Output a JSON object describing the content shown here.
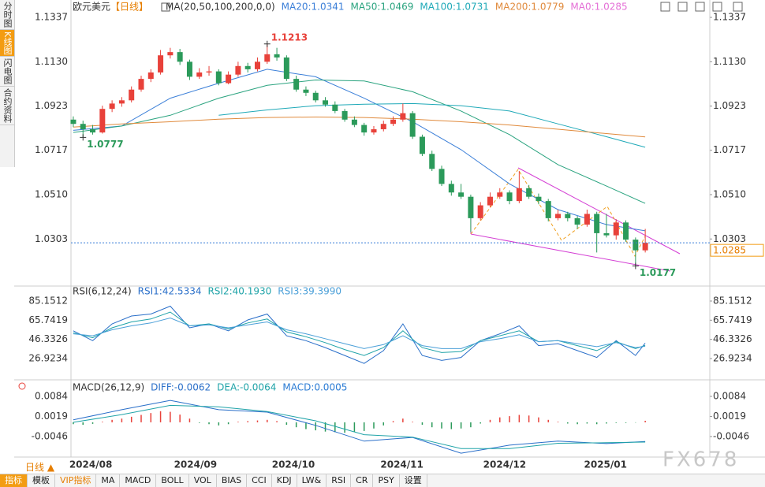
{
  "sidebar_tabs": [
    "分时图",
    "K线图",
    "闪电图",
    "合约资料"
  ],
  "period": "日线",
  "toolbar": [
    "指标",
    "模板",
    "VIP指标",
    "MA",
    "MACD",
    "BOLL",
    "VOL",
    "BIAS",
    "CCI",
    "KDJ",
    "LW&",
    "RSI",
    "CR",
    "PSY",
    "设置"
  ],
  "watermark": "FX678",
  "chart_data": [
    {
      "type": "candlestick",
      "title": "欧元美元",
      "period_label": "【日线】",
      "indicator": "MA(20,50,100,200,0,0)",
      "xlim": [
        -0.24,
        65.66
      ],
      "xticks": [
        {
          "value": 1.8,
          "label": "2024/08"
        },
        {
          "value": 12.6,
          "label": "2024/09"
        },
        {
          "value": 22.7,
          "label": "2024/10"
        },
        {
          "value": 33.9,
          "label": "2024/11"
        },
        {
          "value": 44.5,
          "label": "2024/12"
        },
        {
          "value": 54.9,
          "label": "2025/01"
        }
      ],
      "ylim": [
        1.0087,
        1.1374
      ],
      "yticks": [
        1.1337,
        {
          "value": 1.113,
          "label": "1.1130"
        },
        1.0923,
        1.0717,
        {
          "value": 1.051,
          "label": "1.0510"
        },
        1.0303
      ],
      "up_color": "#e8413a",
      "down_color": "#2b9a5a",
      "open": [
        1.086,
        1.084,
        1.0815,
        1.08,
        1.091,
        1.0935,
        1.095,
        1.1,
        1.105,
        1.108,
        1.116,
        1.1175,
        1.113,
        1.106,
        1.108,
        1.1085,
        1.103,
        1.107,
        1.111,
        1.1095,
        1.113,
        1.1165,
        1.115,
        1.105,
        1.1,
        1.0985,
        1.095,
        1.093,
        1.09,
        1.086,
        1.0835,
        1.08,
        1.0815,
        1.084,
        1.086,
        1.089,
        1.078,
        1.07,
        1.063,
        1.056,
        1.052,
        1.05,
        1.04,
        1.046,
        1.05,
        1.052,
        1.048,
        1.054,
        1.05,
        1.048,
        1.04,
        1.042,
        1.04,
        1.037,
        1.042,
        1.033,
        1.032,
        1.038,
        1.03,
        1.025
      ],
      "high": [
        1.0875,
        1.0855,
        1.0835,
        1.0925,
        1.095,
        1.0965,
        1.1015,
        1.1065,
        1.1095,
        1.1185,
        1.1195,
        1.119,
        1.114,
        1.11,
        1.111,
        1.1095,
        1.1085,
        1.113,
        1.1125,
        1.115,
        1.1213,
        1.1195,
        1.116,
        1.1065,
        1.1015,
        1.0995,
        1.0965,
        1.0945,
        1.091,
        1.0875,
        1.0845,
        1.083,
        1.0855,
        1.0875,
        1.0935,
        1.09,
        1.079,
        1.0715,
        1.0645,
        1.0575,
        1.056,
        1.051,
        1.0475,
        1.052,
        1.054,
        1.053,
        1.062,
        1.0555,
        1.0515,
        1.049,
        1.044,
        1.043,
        1.041,
        1.044,
        1.043,
        1.042,
        1.0395,
        1.039,
        1.031,
        1.035
      ],
      "low": [
        1.0825,
        1.0777,
        1.079,
        1.0795,
        1.0895,
        1.092,
        1.094,
        1.099,
        1.1035,
        1.107,
        1.1145,
        1.1115,
        1.1045,
        1.105,
        1.1065,
        1.102,
        1.1025,
        1.106,
        1.108,
        1.1085,
        1.112,
        1.1135,
        1.104,
        1.099,
        1.097,
        1.094,
        1.092,
        1.089,
        1.085,
        1.0825,
        1.0785,
        1.079,
        1.0805,
        1.083,
        1.085,
        1.077,
        1.069,
        1.062,
        1.055,
        1.0505,
        1.049,
        1.0335,
        1.039,
        1.045,
        1.049,
        1.0465,
        1.047,
        1.049,
        1.0465,
        1.0385,
        1.039,
        1.0385,
        1.035,
        1.036,
        1.024,
        1.031,
        1.03,
        1.029,
        1.0177,
        1.024
      ],
      "close": [
        1.084,
        1.0815,
        1.08,
        1.091,
        1.0935,
        1.095,
        1.1,
        1.105,
        1.108,
        1.116,
        1.1175,
        1.113,
        1.106,
        1.108,
        1.1085,
        1.103,
        1.107,
        1.111,
        1.1095,
        1.113,
        1.1165,
        1.115,
        1.105,
        1.1,
        1.0985,
        1.095,
        1.093,
        1.09,
        1.086,
        1.0835,
        1.08,
        1.0815,
        1.084,
        1.086,
        1.089,
        1.078,
        1.07,
        1.063,
        1.056,
        1.052,
        1.05,
        1.04,
        1.046,
        1.05,
        1.052,
        1.048,
        1.054,
        1.05,
        1.048,
        1.04,
        1.042,
        1.04,
        1.037,
        1.042,
        1.033,
        1.032,
        1.038,
        1.03,
        1.025,
        1.0285
      ],
      "lines": [
        {
          "name": "MA20:1.0341",
          "color": "#3b7fd8",
          "x": [
            0,
            5,
            10,
            15,
            20,
            25,
            30,
            35,
            40,
            45,
            50,
            55,
            59
          ],
          "values": [
            1.081,
            1.083,
            1.096,
            1.103,
            1.1095,
            1.106,
            1.096,
            1.085,
            1.072,
            1.056,
            1.044,
            1.037,
            1.0341
          ]
        },
        {
          "name": "MA50:1.0469",
          "color": "#2aa37f",
          "x": [
            0,
            5,
            10,
            15,
            20,
            25,
            30,
            35,
            40,
            45,
            50,
            55,
            59
          ],
          "values": [
            1.08,
            1.083,
            1.088,
            1.096,
            1.102,
            1.1045,
            1.104,
            1.099,
            1.09,
            1.079,
            1.065,
            1.055,
            1.0469
          ]
        },
        {
          "name": "MA100:1.0731",
          "color": "#1fa9b8",
          "x": [
            0,
            5,
            10,
            15,
            20,
            25,
            30,
            35,
            40,
            45,
            50,
            55,
            59
          ],
          "values": [
            null,
            null,
            null,
            1.088,
            1.0905,
            1.0925,
            1.0932,
            1.0935,
            1.0925,
            1.09,
            1.084,
            1.078,
            1.0731
          ]
        },
        {
          "name": "MA200:1.0779",
          "color": "#e08a3c",
          "x": [
            0,
            5,
            10,
            15,
            20,
            25,
            30,
            35,
            40,
            45,
            50,
            55,
            59
          ],
          "values": [
            1.0825,
            1.084,
            1.085,
            1.0862,
            1.087,
            1.0872,
            1.087,
            1.0862,
            1.085,
            1.0835,
            1.0815,
            1.0795,
            1.0779
          ]
        }
      ],
      "extra_legend": {
        "name": "MA0:1.0285",
        "color": "#e46fd6"
      },
      "last_price": 1.0285,
      "annotations": [
        {
          "label": "1.1213",
          "x": 20,
          "y": 1.1213,
          "color": "#e8413a"
        },
        {
          "label": "1.0777",
          "x": 1,
          "y": 1.0777,
          "color": "#2b9a5a"
        },
        {
          "label": "1.0177",
          "x": 58,
          "y": 1.0177,
          "color": "#2b9a5a"
        }
      ]
    },
    {
      "type": "line",
      "title": "RSI(6,12,24)",
      "xlim": [
        -0.24,
        65.66
      ],
      "ylim": [
        6.98,
        98.71
      ],
      "yticks": [
        85.1512,
        65.7419,
        46.3326,
        26.9234
      ],
      "series": [
        {
          "name": "RSI1:42.5334",
          "color": "#2a6fc9",
          "x": [
            0,
            2,
            4,
            6,
            8,
            10,
            12,
            14,
            16,
            18,
            20,
            22,
            24,
            26,
            28,
            30,
            32,
            34,
            36,
            38,
            40,
            42,
            44,
            46,
            48,
            50,
            52,
            54,
            56,
            58,
            59
          ],
          "values": [
            55,
            45,
            62,
            70,
            72,
            80,
            58,
            62,
            55,
            66,
            72,
            50,
            45,
            38,
            30,
            22,
            35,
            62,
            30,
            25,
            28,
            45,
            52,
            60,
            40,
            42,
            35,
            28,
            45,
            30,
            42.5334
          ]
        },
        {
          "name": "RSI2:40.1930",
          "color": "#1fa3a8",
          "x": [
            0,
            2,
            4,
            6,
            8,
            10,
            12,
            14,
            16,
            18,
            20,
            22,
            24,
            26,
            28,
            30,
            32,
            34,
            36,
            38,
            40,
            42,
            44,
            46,
            48,
            50,
            52,
            54,
            56,
            58,
            59
          ],
          "values": [
            53,
            48,
            58,
            64,
            67,
            74,
            60,
            62,
            57,
            63,
            67,
            54,
            49,
            43,
            36,
            30,
            38,
            55,
            38,
            33,
            34,
            45,
            50,
            55,
            44,
            45,
            40,
            35,
            44,
            37,
            40.193
          ]
        },
        {
          "name": "RSI3:39.3990",
          "color": "#4a9fd8",
          "x": [
            0,
            2,
            4,
            6,
            8,
            10,
            12,
            14,
            16,
            18,
            20,
            22,
            24,
            26,
            28,
            30,
            32,
            34,
            36,
            38,
            40,
            42,
            44,
            46,
            48,
            50,
            52,
            54,
            56,
            58,
            59
          ],
          "values": [
            52,
            50,
            56,
            60,
            63,
            68,
            60,
            61,
            58,
            61,
            64,
            56,
            52,
            47,
            42,
            37,
            41,
            50,
            40,
            37,
            37,
            44,
            47,
            51,
            44,
            45,
            42,
            39,
            43,
            38,
            39.399
          ]
        }
      ]
    },
    {
      "type": "macd",
      "title": "MACD(26,12,9)",
      "xlim": [
        -0.24,
        65.66
      ],
      "ylim": [
        -0.011,
        0.013
      ],
      "yticks": [
        0.0084,
        0.0019,
        -0.0046
      ],
      "histogram": {
        "name": "MACD:0.0005",
        "color": "#2a7bd4",
        "up_color": "#e8413a",
        "down_color": "#2b9a5a",
        "values": [
          -0.0006,
          -0.0008,
          -0.0005,
          0.0002,
          0.0008,
          0.0012,
          0.0018,
          0.0024,
          0.003,
          0.0036,
          0.0034,
          0.0025,
          0.0012,
          -0.0002,
          -0.0006,
          -0.001,
          -0.0006,
          0.0002,
          0.0004,
          0.0006,
          0.0008,
          0.0004,
          -0.0008,
          -0.0016,
          -0.0022,
          -0.0026,
          -0.003,
          -0.0032,
          -0.0034,
          -0.0032,
          -0.0028,
          -0.002,
          -0.001,
          0.0004,
          0.0012,
          0.0002,
          -0.0008,
          -0.0016,
          -0.002,
          -0.0022,
          -0.002,
          -0.0016,
          -0.0004,
          0.0008,
          0.0016,
          0.002,
          0.0024,
          0.0022,
          0.0016,
          0.0008,
          0.0002,
          -0.0004,
          -0.0006,
          -0.0004,
          -0.0006,
          -0.0004,
          -0.0002,
          -0.0002,
          -0.0001,
          0.0005
        ]
      },
      "series": [
        {
          "name": "DIFF:-0.0062",
          "color": "#2a6fc9",
          "x": [
            0,
            5,
            10,
            15,
            20,
            25,
            30,
            35,
            40,
            45,
            50,
            55,
            59
          ],
          "values": [
            0.0008,
            0.0041,
            0.0071,
            0.0041,
            0.0033,
            -0.001,
            -0.0061,
            -0.0049,
            -0.01,
            -0.0074,
            -0.0061,
            -0.0069,
            -0.0062
          ]
        },
        {
          "name": "DEA:-0.0064",
          "color": "#1fa3a8",
          "x": [
            0,
            5,
            10,
            15,
            20,
            25,
            30,
            35,
            40,
            45,
            50,
            55,
            59
          ],
          "values": [
            0.0,
            0.0025,
            0.0055,
            0.005,
            0.0035,
            0.0005,
            -0.004,
            -0.0048,
            -0.0085,
            -0.0085,
            -0.0068,
            -0.0066,
            -0.0064
          ]
        }
      ]
    }
  ]
}
